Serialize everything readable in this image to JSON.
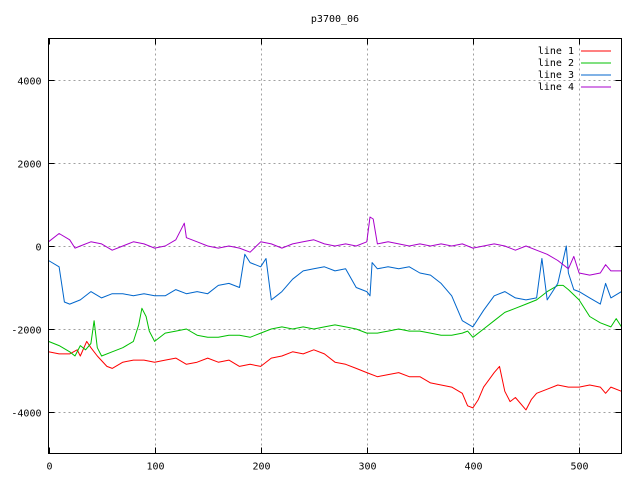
{
  "chart_data": {
    "type": "line",
    "title": "p3700_06",
    "xlabel": "",
    "ylabel": "",
    "xlim": [
      0,
      540
    ],
    "ylim": [
      -5000,
      5000
    ],
    "xticks": [
      0,
      100,
      200,
      300,
      400,
      500
    ],
    "yticks": [
      -4000,
      -2000,
      0,
      2000,
      4000
    ],
    "grid": true,
    "legend": "top-right",
    "series": [
      {
        "name": "line 1",
        "color": "#ff0000",
        "x": [
          0,
          10,
          20,
          27,
          30,
          36,
          40,
          46,
          55,
          60,
          70,
          80,
          90,
          100,
          110,
          120,
          130,
          140,
          150,
          160,
          170,
          180,
          190,
          200,
          210,
          220,
          230,
          240,
          250,
          260,
          270,
          280,
          290,
          300,
          310,
          320,
          330,
          340,
          350,
          360,
          370,
          380,
          390,
          395,
          400,
          405,
          410,
          420,
          425,
          430,
          435,
          440,
          450,
          455,
          460,
          470,
          480,
          490,
          500,
          510,
          520,
          525,
          530,
          540
        ],
        "y": [
          -2550,
          -2600,
          -2600,
          -2500,
          -2650,
          -2300,
          -2450,
          -2650,
          -2900,
          -2950,
          -2800,
          -2750,
          -2750,
          -2800,
          -2750,
          -2700,
          -2850,
          -2800,
          -2700,
          -2800,
          -2750,
          -2900,
          -2850,
          -2900,
          -2700,
          -2650,
          -2550,
          -2600,
          -2500,
          -2600,
          -2800,
          -2850,
          -2950,
          -3050,
          -3150,
          -3100,
          -3050,
          -3150,
          -3150,
          -3300,
          -3350,
          -3400,
          -3550,
          -3850,
          -3900,
          -3700,
          -3400,
          -3050,
          -2900,
          -3500,
          -3750,
          -3650,
          -3950,
          -3700,
          -3550,
          -3450,
          -3350,
          -3400,
          -3400,
          -3350,
          -3400,
          -3550,
          -3400,
          -3500
        ]
      },
      {
        "name": "line 2",
        "color": "#00c000",
        "x": [
          0,
          10,
          20,
          25,
          30,
          35,
          40,
          43,
          46,
          50,
          60,
          70,
          80,
          85,
          88,
          92,
          95,
          100,
          110,
          120,
          130,
          140,
          150,
          160,
          170,
          180,
          190,
          200,
          210,
          220,
          230,
          240,
          250,
          260,
          270,
          280,
          290,
          300,
          310,
          320,
          330,
          340,
          350,
          360,
          370,
          380,
          390,
          395,
          400,
          410,
          420,
          430,
          440,
          450,
          460,
          470,
          480,
          485,
          490,
          500,
          510,
          520,
          530,
          535,
          540
        ],
        "y": [
          -2300,
          -2400,
          -2550,
          -2650,
          -2400,
          -2500,
          -2350,
          -1800,
          -2450,
          -2650,
          -2550,
          -2450,
          -2300,
          -1900,
          -1500,
          -1700,
          -2050,
          -2300,
          -2100,
          -2050,
          -2000,
          -2150,
          -2200,
          -2200,
          -2150,
          -2150,
          -2200,
          -2100,
          -2000,
          -1950,
          -2000,
          -1950,
          -2000,
          -1950,
          -1900,
          -1950,
          -2000,
          -2100,
          -2100,
          -2050,
          -2000,
          -2050,
          -2050,
          -2100,
          -2150,
          -2150,
          -2100,
          -2050,
          -2200,
          -2000,
          -1800,
          -1600,
          -1500,
          -1400,
          -1300,
          -1100,
          -950,
          -950,
          -1050,
          -1300,
          -1700,
          -1850,
          -1950,
          -1750,
          -1950
        ]
      },
      {
        "name": "line 3",
        "color": "#0066cc",
        "x": [
          0,
          10,
          15,
          20,
          30,
          40,
          50,
          60,
          70,
          80,
          90,
          100,
          110,
          120,
          130,
          140,
          150,
          160,
          170,
          180,
          185,
          190,
          200,
          205,
          210,
          215,
          220,
          230,
          240,
          250,
          260,
          270,
          280,
          290,
          300,
          303,
          305,
          310,
          320,
          330,
          340,
          350,
          360,
          370,
          380,
          390,
          400,
          410,
          420,
          430,
          440,
          450,
          460,
          465,
          470,
          480,
          488,
          490,
          495,
          500,
          510,
          520,
          525,
          530,
          540
        ],
        "y": [
          -350,
          -500,
          -1350,
          -1400,
          -1300,
          -1100,
          -1250,
          -1150,
          -1150,
          -1200,
          -1150,
          -1200,
          -1200,
          -1050,
          -1150,
          -1100,
          -1150,
          -950,
          -900,
          -1000,
          -200,
          -400,
          -500,
          -300,
          -1300,
          -1200,
          -1100,
          -800,
          -600,
          -550,
          -500,
          -600,
          -550,
          -1000,
          -1100,
          -1200,
          -400,
          -550,
          -500,
          -550,
          -500,
          -650,
          -700,
          -900,
          -1200,
          -1800,
          -1950,
          -1550,
          -1200,
          -1100,
          -1250,
          -1300,
          -1250,
          -300,
          -1300,
          -900,
          0,
          -650,
          -1050,
          -1100,
          -1250,
          -1400,
          -900,
          -1250,
          -1100
        ]
      },
      {
        "name": "line 4",
        "color": "#aa00cc",
        "x": [
          0,
          10,
          20,
          25,
          30,
          40,
          50,
          60,
          70,
          80,
          90,
          100,
          110,
          120,
          128,
          130,
          140,
          150,
          160,
          170,
          180,
          190,
          200,
          210,
          220,
          230,
          240,
          250,
          260,
          270,
          280,
          290,
          300,
          303,
          306,
          310,
          320,
          330,
          340,
          350,
          360,
          370,
          380,
          390,
          400,
          410,
          420,
          430,
          440,
          450,
          460,
          470,
          480,
          490,
          495,
          500,
          510,
          520,
          525,
          530,
          540
        ],
        "y": [
          100,
          300,
          150,
          -50,
          0,
          100,
          50,
          -100,
          0,
          100,
          50,
          -50,
          0,
          150,
          550,
          200,
          100,
          0,
          -50,
          0,
          -50,
          -150,
          100,
          50,
          -50,
          50,
          100,
          150,
          50,
          0,
          50,
          0,
          100,
          700,
          650,
          50,
          100,
          50,
          0,
          50,
          0,
          50,
          0,
          50,
          -50,
          0,
          50,
          0,
          -100,
          0,
          -100,
          -200,
          -350,
          -550,
          -250,
          -650,
          -700,
          -650,
          -450,
          -600,
          -600
        ]
      }
    ]
  }
}
